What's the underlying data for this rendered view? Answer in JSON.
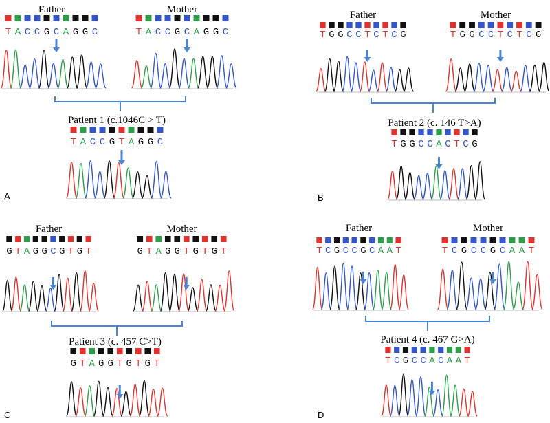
{
  "colors": {
    "A": "#2f9e4a",
    "C": "#3456c9",
    "G": "#111111",
    "T": "#e0322e",
    "arrow": "#4a86d6",
    "bracket": "#4a86d6"
  },
  "panels": [
    {
      "letter": "A",
      "father": {
        "label": "Father",
        "seq": "TACCGCAGGC",
        "arrow": 5
      },
      "mother": {
        "label": "Mother",
        "seq": "TACCGCAGGC",
        "arrow": 5
      },
      "patient": {
        "label": "Patient 1 (c.1046C > T)",
        "seq": "TACCGTAGGC",
        "arrow": 5
      }
    },
    {
      "letter": "B",
      "father": {
        "label": "Father",
        "seq": "TGGCCTCTCG",
        "arrow": 5
      },
      "mother": {
        "label": "Mother",
        "seq": "TGGCCTCTCG",
        "arrow": 5
      },
      "patient": {
        "label": "Patient 2 (c. 146 T>A)",
        "seq": "TGGCCACTCG",
        "arrow": 5
      }
    },
    {
      "letter": "C",
      "father": {
        "label": "Father",
        "seq": "GTAGGCGTGT",
        "arrow": 5
      },
      "mother": {
        "label": "Mother",
        "seq": "GTAGGTGTGT",
        "arrow": 5
      },
      "patient": {
        "label": "Patient 3 (c. 457 C>T)",
        "seq": "GTAGGTGTGT",
        "arrow": 5
      }
    },
    {
      "letter": "D",
      "father": {
        "label": "Father",
        "seq": "TCGCCGCAAT",
        "arrow": 5
      },
      "mother": {
        "label": "Mother",
        "seq": "TCGCCGCAAT",
        "arrow": 5
      },
      "patient": {
        "label": "Patient 4 (c. 467 G>A)",
        "seq": "TCGCCACAAT",
        "arrow": 5
      }
    }
  ]
}
